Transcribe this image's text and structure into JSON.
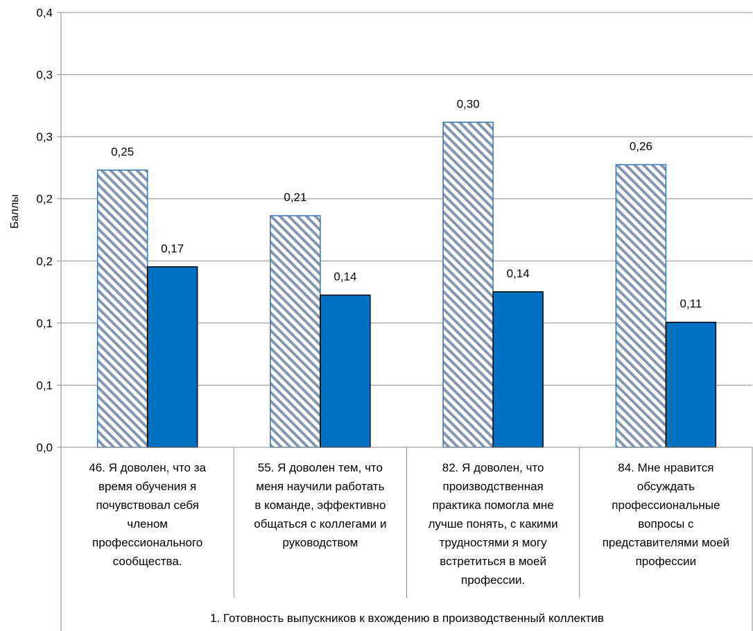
{
  "chart_data": {
    "type": "bar",
    "title": "",
    "ylabel": "Баллы",
    "ylim": [
      0,
      0.4
    ],
    "y_ticks": [
      "0,0",
      "0,1",
      "0,1",
      "0,2",
      "0,2",
      "0,3",
      "0,3",
      "0,4"
    ],
    "grid": true,
    "categories": [
      [
        "46. Я доволен, что за",
        "время обучения я",
        "почувствовал себя",
        "членом",
        "профессионального",
        "сообщества."
      ],
      [
        "55. Я доволен тем, что",
        "меня научили работать",
        "в команде, эффективно",
        "общаться с коллегами и",
        "руководством"
      ],
      [
        "82. Я доволен, что",
        "производственная",
        "практика помогла мне",
        "лучше понять, с какими",
        "трудностями я могу",
        "встретиться в моей",
        "профессии."
      ],
      [
        "84. Мне нравится",
        "обсуждать",
        "профессиональные",
        "вопросы  с",
        "представителями  моей",
        "профессии"
      ]
    ],
    "group_label": "1. Готовность выпускников к вхождению в производственный коллектив",
    "series": [
      {
        "values": [
          0.255,
          0.213,
          0.299,
          0.26
        ],
        "labels": [
          "0,25",
          "0,21",
          "0,30",
          "0,26"
        ],
        "color": "#2E75B6",
        "pattern": "hatched"
      },
      {
        "values": [
          0.166,
          0.14,
          0.143,
          0.115
        ],
        "labels": [
          "0,17",
          "0,14",
          "0,14",
          "0,11"
        ],
        "color": "#0070C0",
        "pattern": "solid"
      }
    ]
  }
}
